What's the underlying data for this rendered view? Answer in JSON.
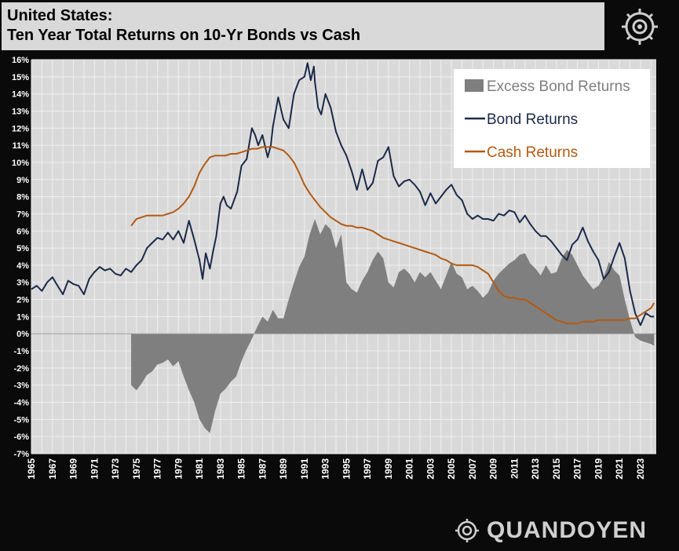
{
  "header": {
    "title_line1": "United States:",
    "title_line2": "Ten Year Total Returns on 10-Yr Bonds vs Cash"
  },
  "brand": {
    "name": "QUANDOYEN",
    "logo_icon": "quandoyen-gear-icon"
  },
  "colors": {
    "bond": "#1b2a4a",
    "cash": "#b35a12",
    "excess": "#7f7f7f",
    "excess_light": "#b3b3b3",
    "plot_bg": "#d9d9d9",
    "grid": "#efefef"
  },
  "chart_data": {
    "type": "line",
    "ylim": [
      -7,
      16
    ],
    "xlim": [
      1965,
      2024.5
    ],
    "y_ticks": [
      -7,
      -6,
      -5,
      -4,
      -3,
      -2,
      -1,
      0,
      1,
      2,
      3,
      4,
      5,
      6,
      7,
      8,
      9,
      10,
      11,
      12,
      13,
      14,
      15,
      16
    ],
    "y_tick_labels": [
      "-7%",
      "-6%",
      "-5%",
      "-4%",
      "-3%",
      "-2%",
      "-1%",
      "0%",
      "1%",
      "2%",
      "3%",
      "4%",
      "5%",
      "6%",
      "7%",
      "8%",
      "9%",
      "10%",
      "11%",
      "12%",
      "13%",
      "14%",
      "15%",
      "16%"
    ],
    "x_tick_labels": [
      "1965",
      "1967",
      "1969",
      "1971",
      "1973",
      "1975",
      "1977",
      "1979",
      "1981",
      "1983",
      "1985",
      "1987",
      "1989",
      "1991",
      "1993",
      "1995",
      "1997",
      "1999",
      "2001",
      "2003",
      "2005",
      "2007",
      "2009",
      "2011",
      "2013",
      "2015",
      "2017",
      "2019",
      "2021",
      "2023"
    ],
    "grid": true,
    "legend_position": "top-right",
    "series": [
      {
        "name": "Excess Bond Returns",
        "kind": "area",
        "x": [
          1974.5,
          1975,
          1975.5,
          1976,
          1976.5,
          1977,
          1977.5,
          1978,
          1978.5,
          1979,
          1979.5,
          1980,
          1980.5,
          1981,
          1981.5,
          1982,
          1982.5,
          1983,
          1983.5,
          1984,
          1984.5,
          1985,
          1985.5,
          1986,
          1986.5,
          1987,
          1987.5,
          1988,
          1988.5,
          1989,
          1989.5,
          1990,
          1990.5,
          1991,
          1991.5,
          1992,
          1992.5,
          1993,
          1993.5,
          1994,
          1994.5,
          1995,
          1995.5,
          1996,
          1996.5,
          1997,
          1997.5,
          1998,
          1998.5,
          1999,
          1999.5,
          2000,
          2000.5,
          2001,
          2001.5,
          2002,
          2002.5,
          2003,
          2003.5,
          2004,
          2004.5,
          2005,
          2005.5,
          2006,
          2006.5,
          2007,
          2007.5,
          2008,
          2008.5,
          2009,
          2009.5,
          2010,
          2010.5,
          2011,
          2011.5,
          2012,
          2012.5,
          2013,
          2013.5,
          2014,
          2014.5,
          2015,
          2015.5,
          2016,
          2016.5,
          2017,
          2017.5,
          2018,
          2018.5,
          2019,
          2019.5,
          2020,
          2020.5,
          2021,
          2021.5,
          2022,
          2022.5,
          2023,
          2023.5,
          2024,
          2024.3
        ],
        "y": [
          -3.0,
          -3.3,
          -2.9,
          -2.4,
          -2.2,
          -1.8,
          -1.7,
          -1.5,
          -1.9,
          -1.6,
          -2.5,
          -3.3,
          -4.0,
          -5.0,
          -5.5,
          -5.8,
          -4.5,
          -3.5,
          -3.2,
          -2.8,
          -2.5,
          -1.6,
          -0.9,
          -0.3,
          0.4,
          1.0,
          0.7,
          1.4,
          0.9,
          0.9,
          2.0,
          3.0,
          3.9,
          4.5,
          5.8,
          6.7,
          5.8,
          6.4,
          6.1,
          5.0,
          5.8,
          3.0,
          2.6,
          2.4,
          3.1,
          3.6,
          4.3,
          4.8,
          4.4,
          3.0,
          2.7,
          3.6,
          3.8,
          3.5,
          3.0,
          3.6,
          3.3,
          3.6,
          3.1,
          2.6,
          3.4,
          4.2,
          3.5,
          3.3,
          2.6,
          2.8,
          2.5,
          2.1,
          2.4,
          3.1,
          3.5,
          3.8,
          4.1,
          4.3,
          4.6,
          4.7,
          4.1,
          3.8,
          3.4,
          4.0,
          3.5,
          3.6,
          4.4,
          4.9,
          4.6,
          4.0,
          3.4,
          3.0,
          2.6,
          2.8,
          3.3,
          4.2,
          3.7,
          3.4,
          2.0,
          0.8,
          -0.2,
          -0.4,
          -0.5,
          -0.6,
          -0.7
        ]
      },
      {
        "name": "Bond Returns",
        "kind": "line",
        "x": [
          1965,
          1965.5,
          1966,
          1966.5,
          1967,
          1967.5,
          1968,
          1968.5,
          1969,
          1969.5,
          1970,
          1970.5,
          1971,
          1971.5,
          1972,
          1972.5,
          1973,
          1973.5,
          1974,
          1974.5,
          1975,
          1975.5,
          1976,
          1976.5,
          1977,
          1977.5,
          1978,
          1978.5,
          1979,
          1979.5,
          1980,
          1980.5,
          1981,
          1981.3,
          1981.6,
          1982,
          1982.3,
          1982.6,
          1983,
          1983.3,
          1983.6,
          1984,
          1984.3,
          1984.6,
          1985,
          1985.5,
          1986,
          1986.3,
          1986.6,
          1987,
          1987.5,
          1987.8,
          1988,
          1988.5,
          1989,
          1989.5,
          1990,
          1990.5,
          1991,
          1991.3,
          1991.6,
          1991.9,
          1992,
          1992.3,
          1992.6,
          1993,
          1993.5,
          1994,
          1994.5,
          1995,
          1995.5,
          1996,
          1996.5,
          1997,
          1997.5,
          1998,
          1998.5,
          1999,
          1999.5,
          2000,
          2000.5,
          2001,
          2001.5,
          2002,
          2002.5,
          2003,
          2003.5,
          2004,
          2004.5,
          2005,
          2005.5,
          2006,
          2006.5,
          2007,
          2007.5,
          2008,
          2008.5,
          2009,
          2009.5,
          2010,
          2010.5,
          2011,
          2011.5,
          2012,
          2012.5,
          2013,
          2013.5,
          2014,
          2014.5,
          2015,
          2015.5,
          2016,
          2016.5,
          2017,
          2017.5,
          2018,
          2018.5,
          2019,
          2019.5,
          2020,
          2020.5,
          2021,
          2021.5,
          2022,
          2022.5,
          2023,
          2023.5,
          2024,
          2024.3
        ],
        "y": [
          2.6,
          2.8,
          2.5,
          3.0,
          3.3,
          2.8,
          2.3,
          3.1,
          2.9,
          2.8,
          2.3,
          3.2,
          3.6,
          3.9,
          3.7,
          3.8,
          3.5,
          3.4,
          3.8,
          3.6,
          4.0,
          4.3,
          5.0,
          5.3,
          5.6,
          5.5,
          5.9,
          5.5,
          6.0,
          5.3,
          6.6,
          5.5,
          4.3,
          3.2,
          4.7,
          3.8,
          4.8,
          5.7,
          7.6,
          8.0,
          7.5,
          7.3,
          7.8,
          8.3,
          9.8,
          10.2,
          12.0,
          11.6,
          11.0,
          11.6,
          10.3,
          11.0,
          12.1,
          13.8,
          12.5,
          12.0,
          14.0,
          14.8,
          15.0,
          15.8,
          14.8,
          15.6,
          14.7,
          13.2,
          12.8,
          14.0,
          13.2,
          11.8,
          11.0,
          10.4,
          9.5,
          8.4,
          9.6,
          8.4,
          8.8,
          10.1,
          10.3,
          10.9,
          9.2,
          8.6,
          8.9,
          9.0,
          8.7,
          8.3,
          7.5,
          8.2,
          7.6,
          8.0,
          8.4,
          8.7,
          8.1,
          7.8,
          7.0,
          6.7,
          6.9,
          6.7,
          6.7,
          6.6,
          7.0,
          6.9,
          7.2,
          7.1,
          6.5,
          6.9,
          6.4,
          6.0,
          5.7,
          5.7,
          5.4,
          5.0,
          4.6,
          4.3,
          5.2,
          5.5,
          6.2,
          5.4,
          4.8,
          4.3,
          3.2,
          3.6,
          4.5,
          5.3,
          4.4,
          2.5,
          1.2,
          0.5,
          1.2,
          1.0,
          1.0
        ]
      },
      {
        "name": "Cash Returns",
        "kind": "line",
        "x": [
          1974.5,
          1975,
          1975.5,
          1976,
          1976.5,
          1977,
          1977.5,
          1978,
          1978.5,
          1979,
          1979.5,
          1980,
          1980.5,
          1981,
          1981.5,
          1982,
          1982.5,
          1983,
          1983.5,
          1984,
          1984.5,
          1985,
          1985.5,
          1986,
          1986.5,
          1987,
          1987.5,
          1988,
          1988.5,
          1989,
          1989.5,
          1990,
          1990.5,
          1991,
          1991.5,
          1992,
          1992.5,
          1993,
          1993.5,
          1994,
          1994.5,
          1995,
          1995.5,
          1996,
          1996.5,
          1997,
          1997.5,
          1998,
          1998.5,
          1999,
          1999.5,
          2000,
          2000.5,
          2001,
          2001.5,
          2002,
          2002.5,
          2003,
          2003.5,
          2004,
          2004.5,
          2005,
          2005.5,
          2006,
          2006.5,
          2007,
          2007.5,
          2008,
          2008.5,
          2009,
          2009.5,
          2010,
          2010.5,
          2011,
          2011.5,
          2012,
          2012.5,
          2013,
          2013.5,
          2014,
          2014.5,
          2015,
          2015.5,
          2016,
          2016.5,
          2017,
          2017.5,
          2018,
          2018.5,
          2019,
          2019.5,
          2020,
          2020.5,
          2021,
          2021.5,
          2022,
          2022.5,
          2023,
          2023.5,
          2024,
          2024.3
        ],
        "y": [
          6.3,
          6.7,
          6.8,
          6.9,
          6.9,
          6.9,
          6.9,
          7.0,
          7.1,
          7.3,
          7.6,
          8.0,
          8.6,
          9.4,
          9.9,
          10.3,
          10.4,
          10.4,
          10.4,
          10.5,
          10.5,
          10.6,
          10.7,
          10.8,
          10.8,
          10.9,
          10.9,
          10.9,
          10.8,
          10.7,
          10.4,
          10.0,
          9.4,
          8.7,
          8.2,
          7.8,
          7.4,
          7.1,
          6.8,
          6.6,
          6.4,
          6.3,
          6.3,
          6.2,
          6.2,
          6.1,
          6.0,
          5.8,
          5.6,
          5.5,
          5.4,
          5.3,
          5.2,
          5.1,
          5.0,
          4.9,
          4.8,
          4.7,
          4.6,
          4.4,
          4.3,
          4.1,
          4.0,
          4.0,
          4.0,
          4.0,
          3.9,
          3.7,
          3.5,
          3.0,
          2.5,
          2.2,
          2.1,
          2.1,
          2.0,
          2.0,
          1.8,
          1.6,
          1.4,
          1.2,
          1.0,
          0.8,
          0.7,
          0.6,
          0.6,
          0.6,
          0.7,
          0.7,
          0.7,
          0.8,
          0.8,
          0.8,
          0.8,
          0.8,
          0.8,
          0.9,
          0.9,
          1.1,
          1.3,
          1.5,
          1.8
        ]
      }
    ]
  }
}
